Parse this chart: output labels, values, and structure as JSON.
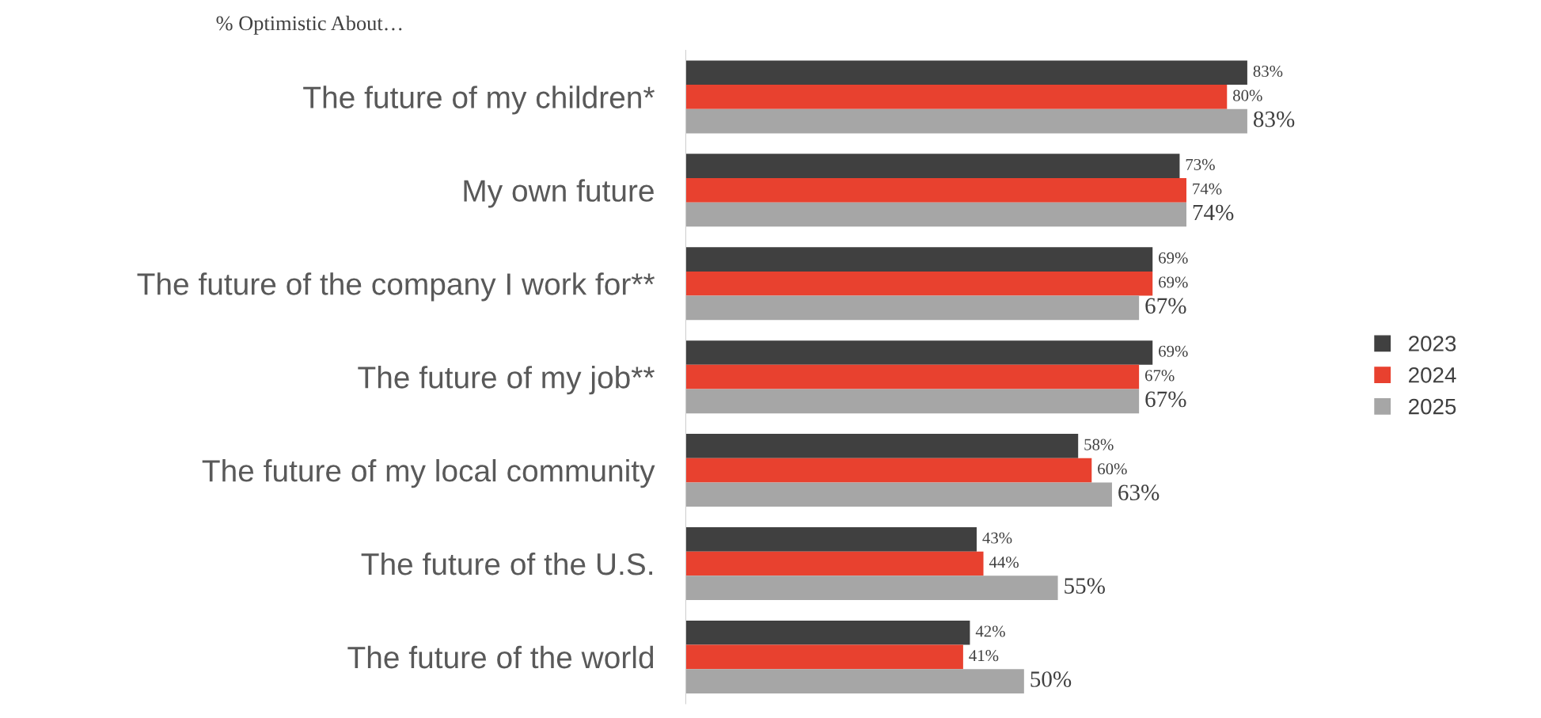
{
  "chart_data": {
    "type": "bar",
    "orientation": "horizontal",
    "title": "% Optimistic About…",
    "categories": [
      "The future of my children*",
      "My own future",
      "The future of the company I work for**",
      "The future of my job**",
      "The future of my local community",
      "The future of the U.S.",
      "The future of the world"
    ],
    "series": [
      {
        "name": "2023",
        "color": "#404040",
        "values": [
          83,
          73,
          69,
          69,
          58,
          43,
          42
        ],
        "value_labels": [
          "83%",
          "73%",
          "69%",
          "69%",
          "58%",
          "43%",
          "42%"
        ]
      },
      {
        "name": "2024",
        "color": "#e8412f",
        "values": [
          80,
          74,
          69,
          67,
          60,
          44,
          41
        ],
        "value_labels": [
          "80%",
          "74%",
          "69%",
          "67%",
          "60%",
          "44%",
          "41%"
        ]
      },
      {
        "name": "2025",
        "color": "#a6a6a6",
        "values": [
          83,
          74,
          67,
          67,
          63,
          55,
          50
        ],
        "value_labels": [
          "83%",
          "74%",
          "67%",
          "67%",
          "63%",
          "55%",
          "50%"
        ]
      }
    ],
    "legend": "right",
    "grid": false
  }
}
